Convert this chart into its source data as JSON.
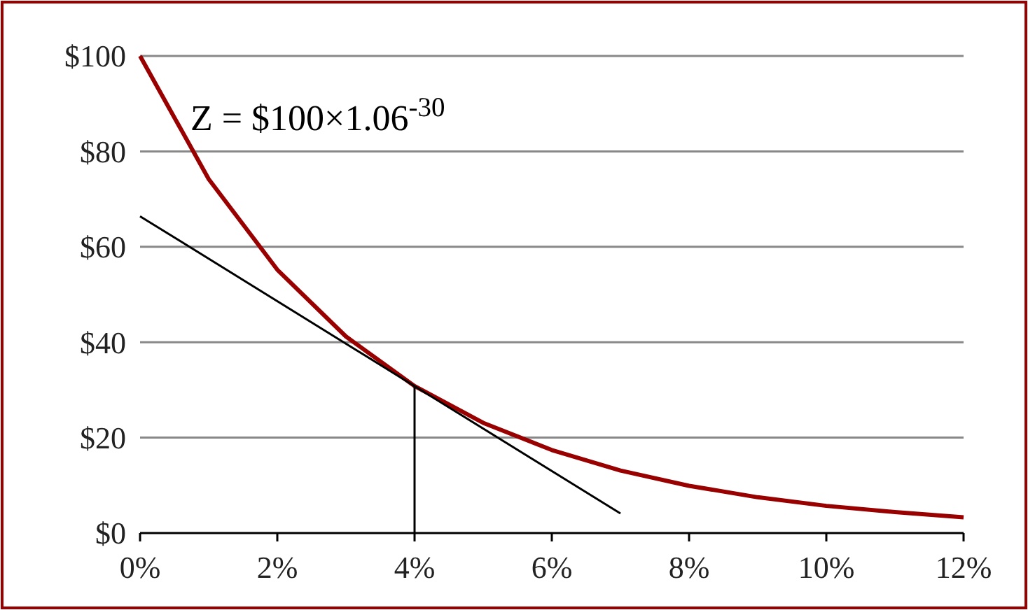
{
  "chart_data": {
    "type": "line",
    "annotations": [
      "Z = $100×1.06$^{-30}$"
    ],
    "x": [
      0,
      1,
      2,
      3,
      4,
      5,
      6,
      7,
      8,
      9,
      10,
      11,
      12
    ],
    "series": [
      {
        "color": "#990000",
        "values": [
          100,
          74.2,
          55.2,
          41.2,
          30.8,
          23.1,
          17.4,
          13.1,
          9.9,
          7.5,
          5.7,
          4.4,
          3.3
        ]
      },
      {
        "color": "#000000",
        "x": [
          0,
          7
        ],
        "values": [
          66.4,
          4.1
        ]
      },
      {
        "color": "#000000",
        "x": [
          4,
          4
        ],
        "values": [
          0,
          30.8
        ]
      }
    ],
    "xlim": [
      0,
      12
    ],
    "xticks": [
      {
        "value": 0,
        "label": "0%"
      },
      {
        "value": 2,
        "label": "2%"
      },
      {
        "value": 4,
        "label": "4%"
      },
      {
        "value": 6,
        "label": "6%"
      },
      {
        "value": 8,
        "label": "8%"
      },
      {
        "value": 10,
        "label": "10%"
      },
      {
        "value": 12,
        "label": "12%"
      }
    ],
    "ylim": [
      0,
      100
    ],
    "yticks": [
      {
        "value": 0,
        "label": "$0"
      },
      {
        "value": 20,
        "label": "$20"
      },
      {
        "value": 40,
        "label": "$40"
      },
      {
        "value": 60,
        "label": "$60"
      },
      {
        "value": 80,
        "label": "$80"
      },
      {
        "value": 100,
        "label": "$100"
      }
    ],
    "grid": "y",
    "marker": "none",
    "line_style": "solid"
  }
}
